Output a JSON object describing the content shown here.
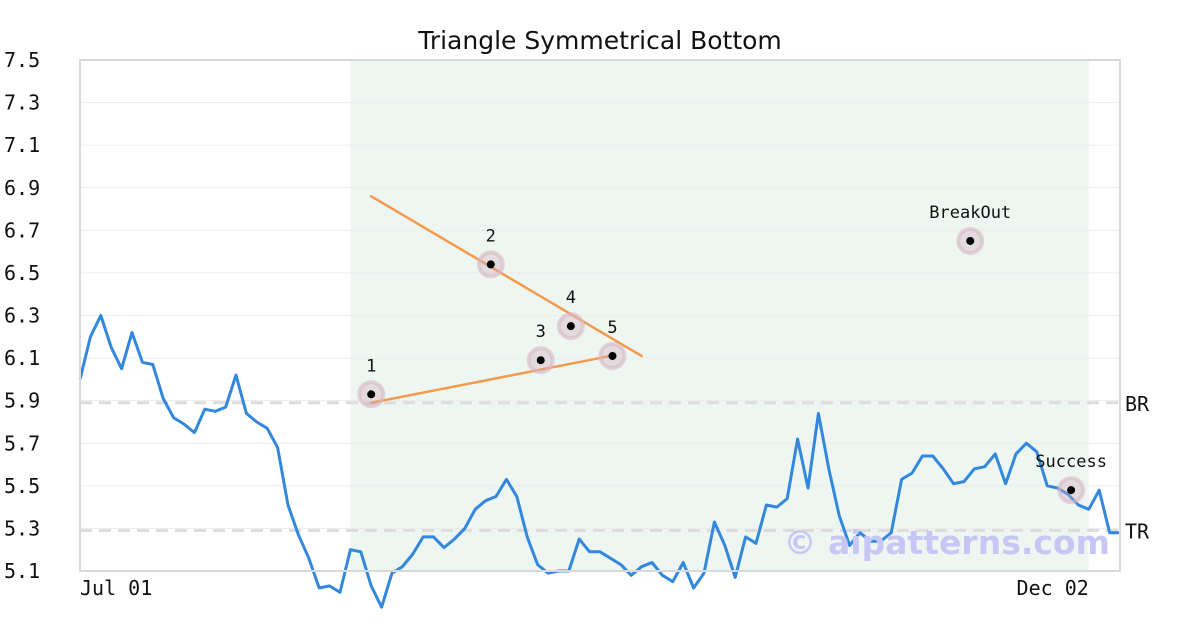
{
  "chart_data": {
    "type": "line",
    "title": "Triangle Symmetrical Bottom",
    "xlabel": "",
    "ylabel": "",
    "ylim": [
      5.1,
      7.5
    ],
    "yticks": [
      "7.5",
      "7.3",
      "7.1",
      "6.9",
      "6.7",
      "6.5",
      "6.3",
      "6.1",
      "5.9",
      "5.7",
      "5.5",
      "5.3",
      "5.1"
    ],
    "xticks": [
      {
        "label": "Jul 01",
        "index": 0
      },
      {
        "label": "Dec 02",
        "index": 97
      }
    ],
    "grid": true,
    "highlight_range": [
      26,
      97
    ],
    "series": [
      {
        "color": "#3388dd",
        "values": [
          6.0,
          6.2,
          6.3,
          6.15,
          6.05,
          6.22,
          6.08,
          6.07,
          5.91,
          5.82,
          5.79,
          5.75,
          5.86,
          5.85,
          5.87,
          6.02,
          5.84,
          5.8,
          5.77,
          5.68,
          5.41,
          5.27,
          5.16,
          5.02,
          5.03,
          5.0,
          5.2,
          5.19,
          5.03,
          4.93,
          5.09,
          5.12,
          5.18,
          5.26,
          5.26,
          5.21,
          5.25,
          5.3,
          5.39,
          5.43,
          5.45,
          5.53,
          5.45,
          5.26,
          5.13,
          5.09,
          5.1,
          5.1,
          5.25,
          5.19,
          5.19,
          5.16,
          5.13,
          5.08,
          5.12,
          5.14,
          5.08,
          5.05,
          5.14,
          5.02,
          5.09,
          5.33,
          5.22,
          5.07,
          5.26,
          5.23,
          5.41,
          5.4,
          5.44,
          5.72,
          5.49,
          5.84,
          5.58,
          5.36,
          5.22,
          5.28,
          5.24,
          5.24,
          5.28,
          5.53,
          5.56,
          5.64,
          5.64,
          5.58,
          5.51,
          5.52,
          5.58,
          5.59,
          5.65,
          5.51,
          5.65,
          5.7,
          5.66,
          5.5,
          5.49,
          5.46,
          5.41,
          5.39,
          5.48,
          5.28,
          5.28
        ]
      }
    ],
    "trendlines": [
      {
        "color": "#f5994b",
        "from": [
          28,
          6.86
        ],
        "to": [
          54,
          6.11
        ]
      },
      {
        "color": "#f5994b",
        "from": [
          28,
          5.89
        ],
        "to": [
          51,
          6.11
        ]
      }
    ],
    "reference_lines": [
      {
        "label": "BR",
        "y": 5.89
      },
      {
        "label": "TR",
        "y": 5.29
      }
    ],
    "points": [
      {
        "label": "1",
        "x": 28,
        "y": 5.93
      },
      {
        "label": "2",
        "x": 39.5,
        "y": 6.54
      },
      {
        "label": "3",
        "x": 44.3,
        "y": 6.09
      },
      {
        "label": "4",
        "x": 47.2,
        "y": 6.25
      },
      {
        "label": "5",
        "x": 51.2,
        "y": 6.11
      },
      {
        "label": "BreakOut",
        "x": 85.6,
        "y": 6.65
      },
      {
        "label": "Success",
        "x": 95.3,
        "y": 5.48
      }
    ],
    "watermark": "© aipatterns.com"
  }
}
